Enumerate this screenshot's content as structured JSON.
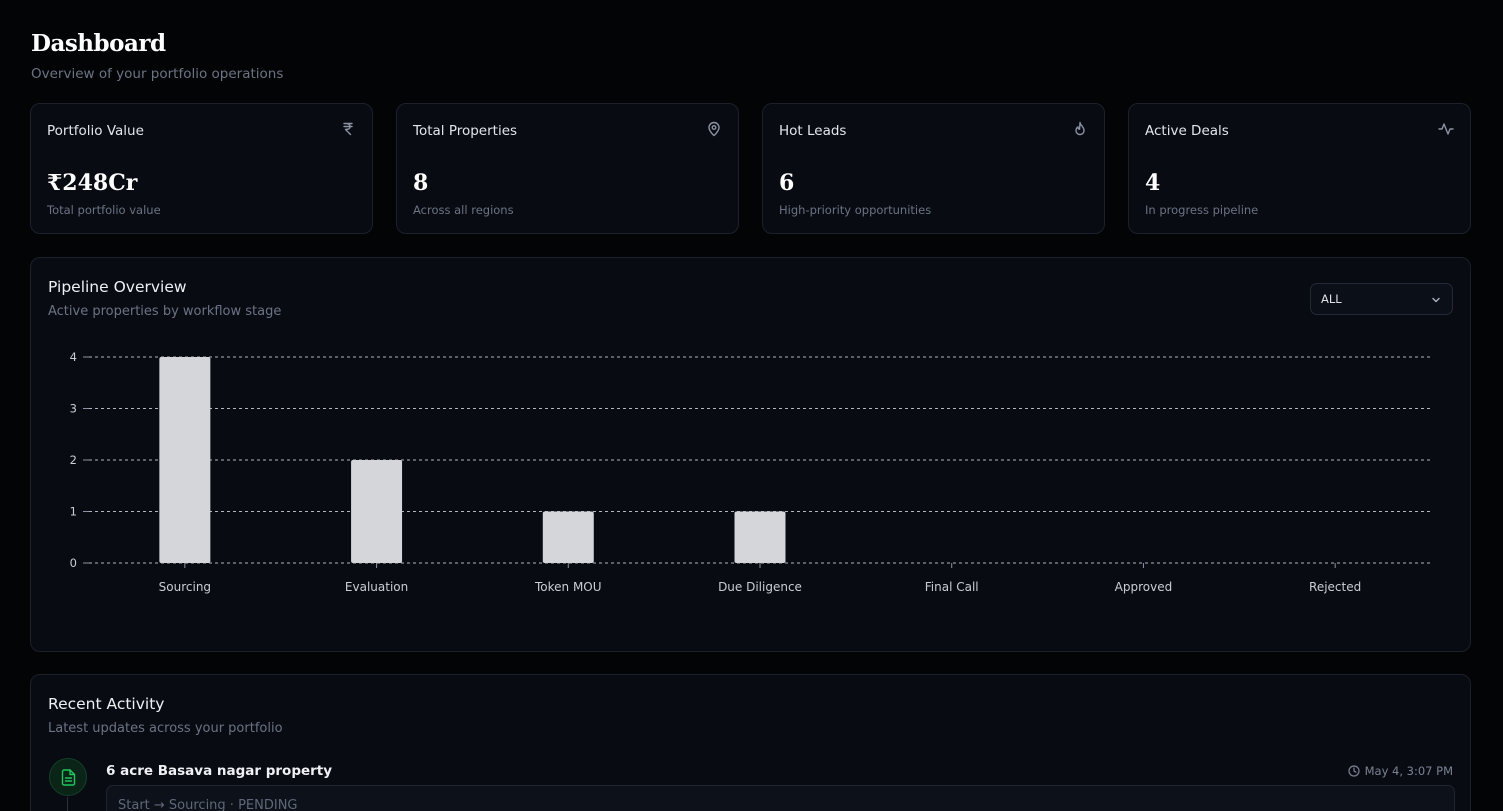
{
  "header": {
    "title": "Dashboard",
    "subtitle": "Overview of your portfolio operations"
  },
  "stats": [
    {
      "label": "Portfolio Value",
      "value": "₹248Cr",
      "caption": "Total portfolio value",
      "icon": "rupee-icon"
    },
    {
      "label": "Total Properties",
      "value": "8",
      "caption": "Across all regions",
      "icon": "map-pin-icon"
    },
    {
      "label": "Hot Leads",
      "value": "6",
      "caption": "High-priority opportunities",
      "icon": "flame-icon"
    },
    {
      "label": "Active Deals",
      "value": "4",
      "caption": "In progress pipeline",
      "icon": "activity-icon"
    }
  ],
  "pipeline": {
    "title": "Pipeline Overview",
    "subtitle": "Active properties by workflow stage",
    "filter": {
      "selected": "ALL"
    }
  },
  "chart_data": {
    "type": "bar",
    "categories": [
      "Sourcing",
      "Evaluation",
      "Token MOU",
      "Due Diligence",
      "Final Call",
      "Approved",
      "Rejected"
    ],
    "values": [
      4,
      2,
      1,
      1,
      0,
      0,
      0
    ],
    "ylim": [
      0,
      4
    ],
    "yticks": [
      0,
      1,
      2,
      3,
      4
    ],
    "grid": true,
    "bar_color": "#d4d6da"
  },
  "activity": {
    "title": "Recent Activity",
    "subtitle": "Latest updates across your portfolio",
    "items": [
      {
        "title": "6 acre Basava nagar property",
        "time": "May 4, 3:07 PM",
        "detail": "Start → Sourcing · PENDING",
        "icon": "document-icon",
        "accent": "#22c55e"
      }
    ]
  }
}
